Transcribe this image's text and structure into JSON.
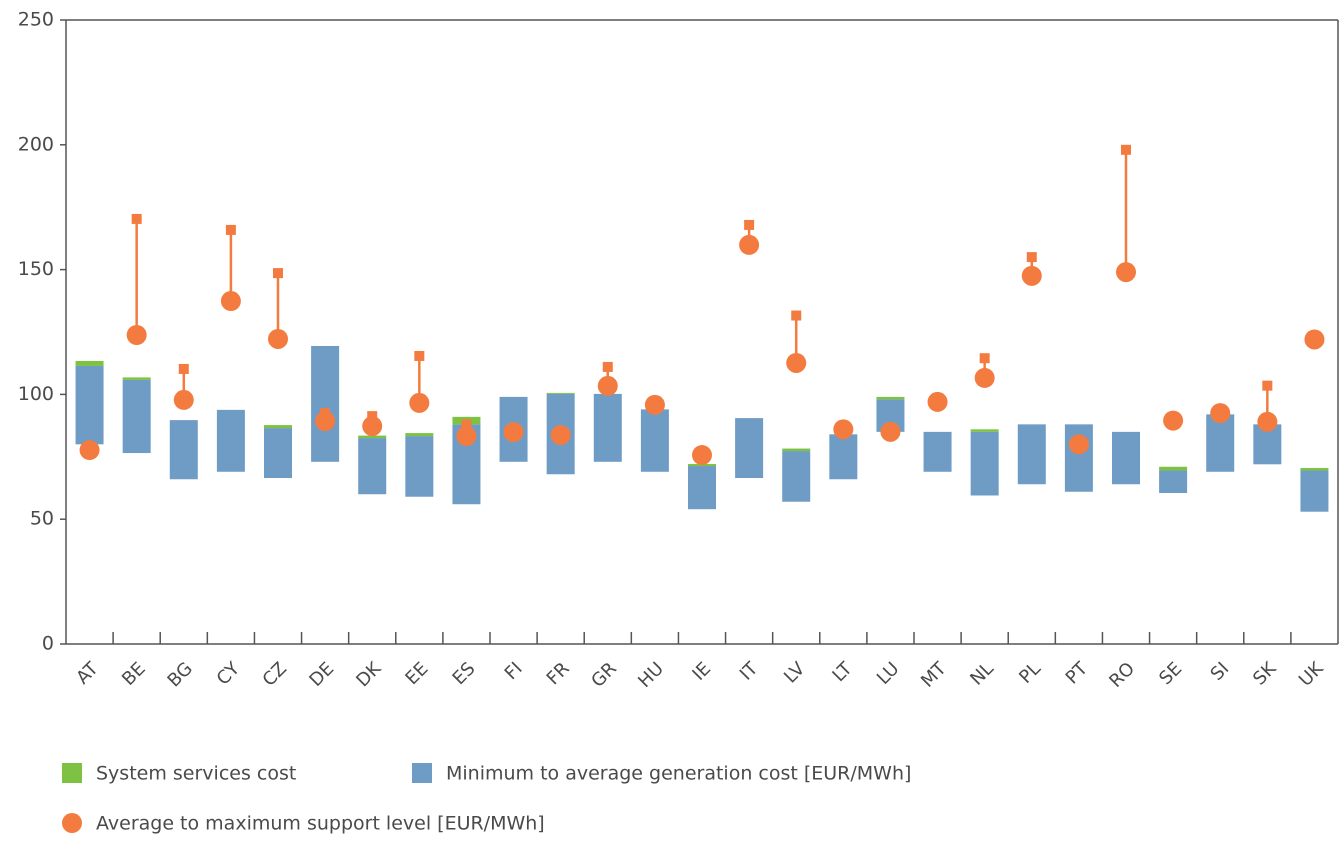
{
  "chart_data": {
    "type": "floating-bar",
    "categories": [
      "AT",
      "BE",
      "BG",
      "CY",
      "CZ",
      "DE",
      "DK",
      "EE",
      "ES",
      "FI",
      "FR",
      "GR",
      "HU",
      "IE",
      "IT",
      "LV",
      "LT",
      "LU",
      "MT",
      "NL",
      "PL",
      "PT",
      "RO",
      "SE",
      "SI",
      "SK",
      "UK"
    ],
    "series": [
      {
        "name": "System services cost",
        "color": "#7dc242",
        "kind": "stack",
        "values": [
          2,
          1,
          null,
          null,
          1.2,
          null,
          1,
          1.2,
          3,
          null,
          0.4,
          null,
          null,
          0.8,
          null,
          1,
          null,
          1,
          null,
          1,
          null,
          null,
          null,
          1.5,
          null,
          null,
          1
        ]
      },
      {
        "name": "Minimum to average generation cost [EUR/MWh]",
        "color": "#6e9cc5",
        "kind": "range",
        "values": [
          [
            80,
            111.4
          ],
          [
            76.5,
            105.8
          ],
          [
            66,
            89.7
          ],
          [
            69,
            93.8
          ],
          [
            66.5,
            86.5
          ],
          [
            73,
            119.4
          ],
          [
            60,
            82.5
          ],
          [
            59,
            83.3
          ],
          [
            56,
            88
          ],
          [
            73,
            99
          ],
          [
            68,
            100.2
          ],
          [
            73,
            100.2
          ],
          [
            69,
            94
          ],
          [
            54,
            71.3
          ],
          [
            66.5,
            90.5
          ],
          [
            57,
            77.3
          ],
          [
            66,
            84
          ],
          [
            85,
            98
          ],
          [
            69,
            85
          ],
          [
            59.5,
            85
          ],
          [
            64,
            88
          ],
          [
            61,
            88
          ],
          [
            64,
            85
          ],
          [
            60.5,
            69.5
          ],
          [
            69,
            92
          ],
          [
            72,
            88
          ],
          [
            53,
            69.5
          ]
        ]
      },
      {
        "name": "Average to maximum support level [EUR/MWh]",
        "color": "#f37b3f",
        "kind": "support",
        "values": [
          [
            77.7,
            null
          ],
          [
            123.8,
            170.3
          ],
          [
            97.8,
            110.2
          ],
          [
            137.4,
            165.9
          ],
          [
            122.2,
            148.6
          ],
          [
            89.3,
            92.5
          ],
          [
            87.3,
            91.3
          ],
          [
            96.6,
            115.4
          ],
          [
            83.3,
            88
          ],
          [
            84.9,
            null
          ],
          [
            83.7,
            null
          ],
          [
            103.4,
            111
          ],
          [
            95.8,
            null
          ],
          [
            75.7,
            null
          ],
          [
            159.9,
            167.9
          ],
          [
            112.6,
            131.6
          ],
          [
            86,
            null
          ],
          [
            85,
            null
          ],
          [
            97,
            null
          ],
          [
            106.6,
            114.5
          ],
          [
            147.5,
            155
          ],
          [
            80,
            null
          ],
          [
            149,
            198
          ],
          [
            89.5,
            null
          ],
          [
            92.5,
            null
          ],
          [
            89,
            103.5
          ],
          [
            122,
            null
          ]
        ]
      }
    ],
    "ylim": [
      0,
      250
    ],
    "yticks": [
      0,
      50,
      100,
      150,
      200,
      250
    ]
  }
}
